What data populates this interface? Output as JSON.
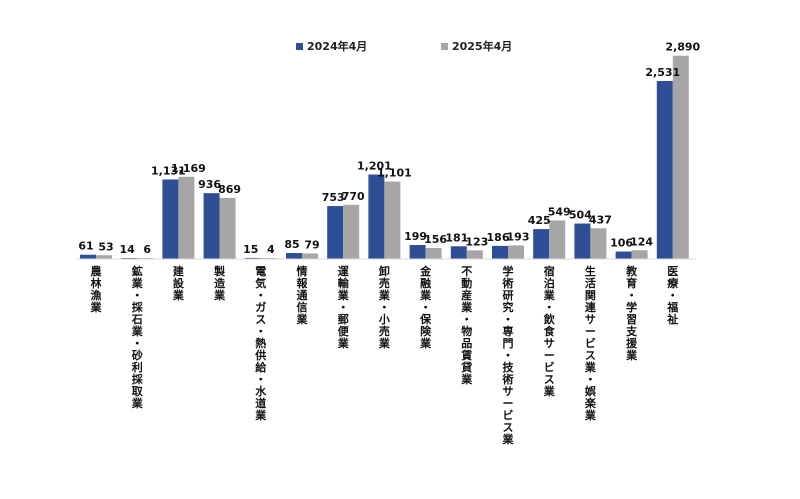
{
  "chart_data": {
    "type": "bar",
    "categories": [
      "農林漁業",
      "鉱業・採石業・砂利採取業",
      "建設業",
      "製造業",
      "電気・ガス・熱供給・水道業",
      "情報通信業",
      "運輸業・郵便業",
      "卸売業・小売業",
      "金融業・保険業",
      "不動産業・物品賃貸業",
      "学術研究・専門・技術サービス業",
      "宿泊業・飲食サービス業",
      "生活関連サービス業・娯楽業",
      "教育・学習支援業",
      "医療・福祉"
    ],
    "series": [
      {
        "name": "2024年4月",
        "color": "#2e4f96",
        "values": [
          61,
          14,
          1131,
          936,
          15,
          85,
          753,
          1201,
          199,
          181,
          186,
          425,
          504,
          106,
          2531
        ],
        "labels": [
          "61",
          "14",
          "1,131",
          "936",
          "15",
          "85",
          "753",
          "1,201",
          "199",
          "181",
          "186",
          "425",
          "504",
          "106",
          "2,531"
        ]
      },
      {
        "name": "2025年4月",
        "color": "#a6a6a6",
        "values": [
          53,
          6,
          1169,
          869,
          4,
          79,
          770,
          1101,
          156,
          123,
          193,
          549,
          437,
          124,
          2890
        ],
        "labels": [
          "53",
          "6",
          "1,169",
          "869",
          "4",
          "79",
          "770",
          "1,101",
          "156",
          "123",
          "193",
          "549",
          "437",
          "124",
          "2,890"
        ]
      }
    ],
    "ylim": [
      0,
      3000
    ],
    "grid": false,
    "legend_position": "top-center"
  }
}
